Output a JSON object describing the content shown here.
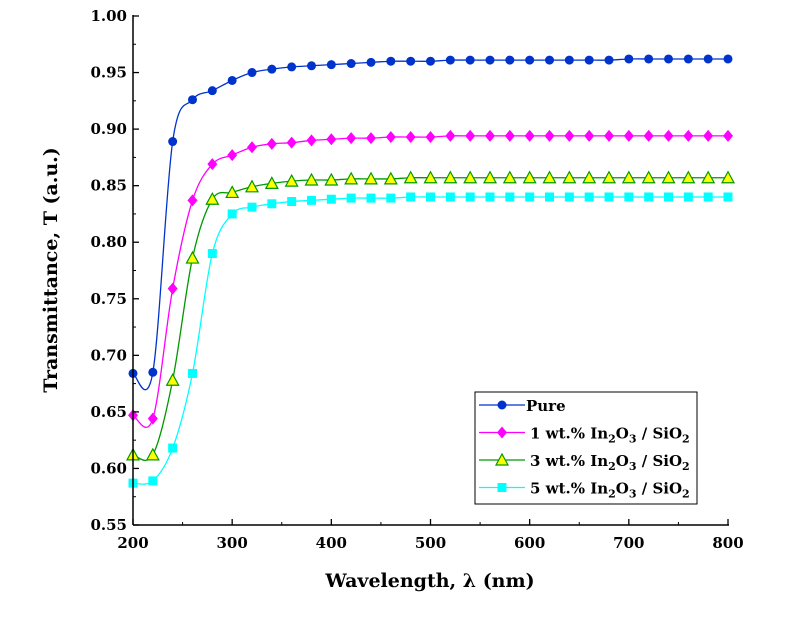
{
  "chart_data": {
    "type": "line",
    "title": "",
    "xlabel": "Wavelength, λ (nm)",
    "ylabel": "Transmittance, T (a.u.)",
    "xlim": [
      200,
      800
    ],
    "ylim": [
      0.55,
      1.0
    ],
    "xticks": [
      200,
      300,
      400,
      500,
      600,
      700,
      800
    ],
    "yticks": [
      "0.55",
      "0.60",
      "0.65",
      "0.70",
      "0.75",
      "0.80",
      "0.85",
      "0.90",
      "0.95",
      "1.00"
    ],
    "grid": false,
    "legend_position": "bottom-right",
    "x": [
      200,
      220,
      240,
      260,
      280,
      300,
      320,
      340,
      360,
      380,
      400,
      420,
      440,
      460,
      480,
      500,
      520,
      540,
      560,
      580,
      600,
      620,
      640,
      660,
      680,
      700,
      720,
      740,
      760,
      780,
      800
    ],
    "series": [
      {
        "name": "Pure",
        "label_main": "Pure",
        "label_parts": [],
        "color": "#0033cc",
        "marker": "circle",
        "values": [
          0.684,
          0.685,
          0.889,
          0.926,
          0.934,
          0.943,
          0.95,
          0.953,
          0.955,
          0.956,
          0.957,
          0.958,
          0.959,
          0.96,
          0.96,
          0.96,
          0.961,
          0.961,
          0.961,
          0.961,
          0.961,
          0.961,
          0.961,
          0.961,
          0.961,
          0.962,
          0.962,
          0.962,
          0.962,
          0.962,
          0.962
        ]
      },
      {
        "name": "1 wt.% In2O3 / SiO2",
        "label_main": "1 wt.% In",
        "label_parts": [
          "2",
          "O",
          "3",
          " / SiO",
          "2"
        ],
        "color": "#ff00ff",
        "marker": "diamond",
        "values": [
          0.647,
          0.644,
          0.759,
          0.837,
          0.869,
          0.877,
          0.884,
          0.887,
          0.888,
          0.89,
          0.891,
          0.892,
          0.892,
          0.893,
          0.893,
          0.893,
          0.894,
          0.894,
          0.894,
          0.894,
          0.894,
          0.894,
          0.894,
          0.894,
          0.894,
          0.894,
          0.894,
          0.894,
          0.894,
          0.894,
          0.894
        ]
      },
      {
        "name": "3 wt.% In2O3 / SiO2",
        "label_main": "3 wt.% In",
        "label_parts": [
          "2",
          "O",
          "3",
          " / SiO",
          "2"
        ],
        "color": "#009900",
        "fill": "#ffff00",
        "marker": "triangle",
        "values": [
          0.612,
          0.612,
          0.678,
          0.786,
          0.838,
          0.844,
          0.849,
          0.852,
          0.854,
          0.855,
          0.855,
          0.856,
          0.856,
          0.856,
          0.857,
          0.857,
          0.857,
          0.857,
          0.857,
          0.857,
          0.857,
          0.857,
          0.857,
          0.857,
          0.857,
          0.857,
          0.857,
          0.857,
          0.857,
          0.857,
          0.857
        ]
      },
      {
        "name": "5 wt.% In2O3 / SiO2",
        "label_main": "5 wt.% In",
        "label_parts": [
          "2",
          "O",
          "3",
          " / SiO",
          "2"
        ],
        "color": "#00ffff",
        "marker": "square",
        "values": [
          0.587,
          0.589,
          0.618,
          0.684,
          0.79,
          0.825,
          0.831,
          0.834,
          0.836,
          0.837,
          0.838,
          0.839,
          0.839,
          0.839,
          0.84,
          0.84,
          0.84,
          0.84,
          0.84,
          0.84,
          0.84,
          0.84,
          0.84,
          0.84,
          0.84,
          0.84,
          0.84,
          0.84,
          0.84,
          0.84,
          0.84
        ]
      }
    ]
  }
}
